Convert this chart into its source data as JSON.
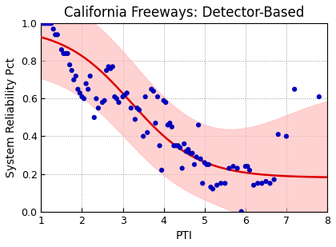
{
  "title": "California Freeways: Detector-Based",
  "xlabel": "PTI",
  "ylabel": "System Reliability Pct",
  "xlim": [
    1,
    8
  ],
  "ylim": [
    0.0,
    1.0
  ],
  "xticks": [
    1,
    2,
    3,
    4,
    5,
    6,
    7,
    8
  ],
  "yticks": [
    0.0,
    0.2,
    0.4,
    0.6,
    0.8,
    1.0
  ],
  "scatter_color": "#0000bb",
  "curve_color": "#dd0000",
  "band_color": "#ffbbbb",
  "band_alpha": 0.65,
  "background_color": "#ffffff",
  "scatter_x": [
    1.05,
    1.1,
    1.15,
    1.2,
    1.25,
    1.3,
    1.35,
    1.4,
    1.5,
    1.55,
    1.6,
    1.65,
    1.7,
    1.75,
    1.8,
    1.85,
    1.9,
    1.95,
    2.0,
    2.05,
    2.1,
    2.15,
    2.2,
    2.3,
    2.35,
    2.4,
    2.5,
    2.55,
    2.6,
    2.65,
    2.7,
    2.75,
    2.8,
    2.85,
    2.9,
    3.0,
    3.05,
    3.1,
    3.2,
    3.3,
    3.35,
    3.4,
    3.5,
    3.55,
    3.6,
    3.7,
    3.75,
    3.8,
    3.85,
    3.9,
    3.95,
    4.0,
    4.05,
    4.1,
    4.15,
    4.2,
    4.25,
    4.3,
    4.35,
    4.4,
    4.45,
    4.5,
    4.55,
    4.6,
    4.65,
    4.7,
    4.75,
    4.8,
    4.85,
    4.9,
    4.95,
    5.0,
    5.05,
    5.1,
    5.15,
    5.2,
    5.3,
    5.4,
    5.5,
    5.6,
    5.7,
    5.8,
    5.9,
    6.0,
    6.05,
    6.1,
    6.2,
    6.3,
    6.4,
    6.5,
    6.6,
    6.7,
    6.8,
    7.0,
    7.2,
    7.8
  ],
  "scatter_y": [
    1.0,
    1.0,
    1.0,
    1.0,
    1.0,
    0.97,
    0.94,
    0.94,
    0.86,
    0.84,
    0.84,
    0.84,
    0.78,
    0.75,
    0.7,
    0.72,
    0.65,
    0.63,
    0.61,
    0.6,
    0.68,
    0.65,
    0.72,
    0.5,
    0.6,
    0.55,
    0.58,
    0.59,
    0.75,
    0.77,
    0.76,
    0.77,
    0.61,
    0.6,
    0.58,
    0.61,
    0.62,
    0.63,
    0.55,
    0.49,
    0.55,
    0.54,
    0.4,
    0.61,
    0.42,
    0.65,
    0.64,
    0.47,
    0.61,
    0.35,
    0.22,
    0.59,
    0.58,
    0.46,
    0.47,
    0.45,
    0.35,
    0.35,
    0.35,
    0.34,
    0.23,
    0.36,
    0.32,
    0.33,
    0.31,
    0.31,
    0.25,
    0.29,
    0.46,
    0.28,
    0.15,
    0.26,
    0.25,
    0.25,
    0.13,
    0.12,
    0.14,
    0.15,
    0.15,
    0.23,
    0.24,
    0.23,
    0.0,
    0.24,
    0.24,
    0.22,
    0.14,
    0.15,
    0.15,
    0.16,
    0.15,
    0.17,
    0.41,
    0.4,
    0.65,
    0.61
  ],
  "title_fontsize": 12,
  "label_fontsize": 10,
  "tick_fontsize": 9,
  "figwidth": 4.2,
  "figheight": 3.09,
  "dpi": 100
}
